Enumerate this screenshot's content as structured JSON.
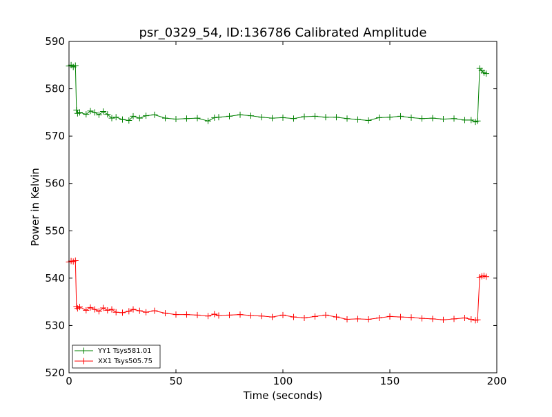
{
  "chart_data": {
    "type": "line",
    "title": "psr_0329_54, ID:136786 Calibrated Amplitude",
    "xlabel": "Time (seconds)",
    "ylabel": "Power in Kelvin",
    "xlim": [
      0,
      200
    ],
    "ylim": [
      520,
      590
    ],
    "xticks": [
      0,
      50,
      100,
      150,
      200
    ],
    "yticks": [
      520,
      530,
      540,
      550,
      560,
      570,
      580,
      590
    ],
    "grid": false,
    "legend_position": "lower-left",
    "marker": "+",
    "series": [
      {
        "name": "YY1 Tsys581.01",
        "color": "#008000",
        "x": [
          0,
          1,
          2,
          3,
          3.5,
          4,
          5,
          8,
          10,
          12,
          14,
          16,
          18,
          20,
          22,
          25,
          28,
          30,
          33,
          36,
          40,
          45,
          50,
          55,
          60,
          65,
          68,
          70,
          75,
          80,
          85,
          90,
          95,
          100,
          105,
          110,
          115,
          120,
          125,
          130,
          135,
          140,
          145,
          150,
          155,
          160,
          165,
          170,
          175,
          180,
          185,
          188,
          190,
          191,
          192,
          193,
          194,
          195
        ],
        "values": [
          584.8,
          585.0,
          584.6,
          584.9,
          575.5,
          574.8,
          575.0,
          574.6,
          575.3,
          575.0,
          574.5,
          575.2,
          574.6,
          573.8,
          574.0,
          573.5,
          573.3,
          574.2,
          573.8,
          574.3,
          574.5,
          573.8,
          573.6,
          573.7,
          573.8,
          573.2,
          573.9,
          574.0,
          574.2,
          574.5,
          574.3,
          574.0,
          573.8,
          573.9,
          573.7,
          574.1,
          574.2,
          574.0,
          574.0,
          573.7,
          573.5,
          573.3,
          573.9,
          574.0,
          574.2,
          573.9,
          573.7,
          573.8,
          573.6,
          573.7,
          573.4,
          573.4,
          573.0,
          573.2,
          584.3,
          583.8,
          583.4,
          583.2
        ]
      },
      {
        "name": "XX1 Tsys505.75",
        "color": "#ff0000",
        "x": [
          0,
          1,
          2,
          3,
          3.5,
          4,
          5,
          8,
          10,
          12,
          14,
          16,
          18,
          20,
          22,
          25,
          28,
          30,
          33,
          36,
          40,
          45,
          50,
          55,
          60,
          65,
          68,
          70,
          75,
          80,
          85,
          90,
          95,
          100,
          105,
          110,
          115,
          120,
          125,
          130,
          135,
          140,
          145,
          150,
          155,
          160,
          165,
          170,
          175,
          180,
          185,
          188,
          190,
          191,
          192,
          193,
          194,
          195
        ],
        "values": [
          543.4,
          543.6,
          543.5,
          543.7,
          534.0,
          533.6,
          533.9,
          533.2,
          533.8,
          533.4,
          533.0,
          533.7,
          533.2,
          533.4,
          532.8,
          532.7,
          533.0,
          533.4,
          533.1,
          532.8,
          533.1,
          532.6,
          532.3,
          532.3,
          532.2,
          532.0,
          532.4,
          532.1,
          532.2,
          532.3,
          532.1,
          532.0,
          531.8,
          532.2,
          531.8,
          531.6,
          531.9,
          532.2,
          531.8,
          531.3,
          531.4,
          531.3,
          531.6,
          531.9,
          531.8,
          531.7,
          531.5,
          531.4,
          531.2,
          531.4,
          531.6,
          531.3,
          531.1,
          531.2,
          540.2,
          540.4,
          540.5,
          540.3
        ]
      }
    ]
  }
}
